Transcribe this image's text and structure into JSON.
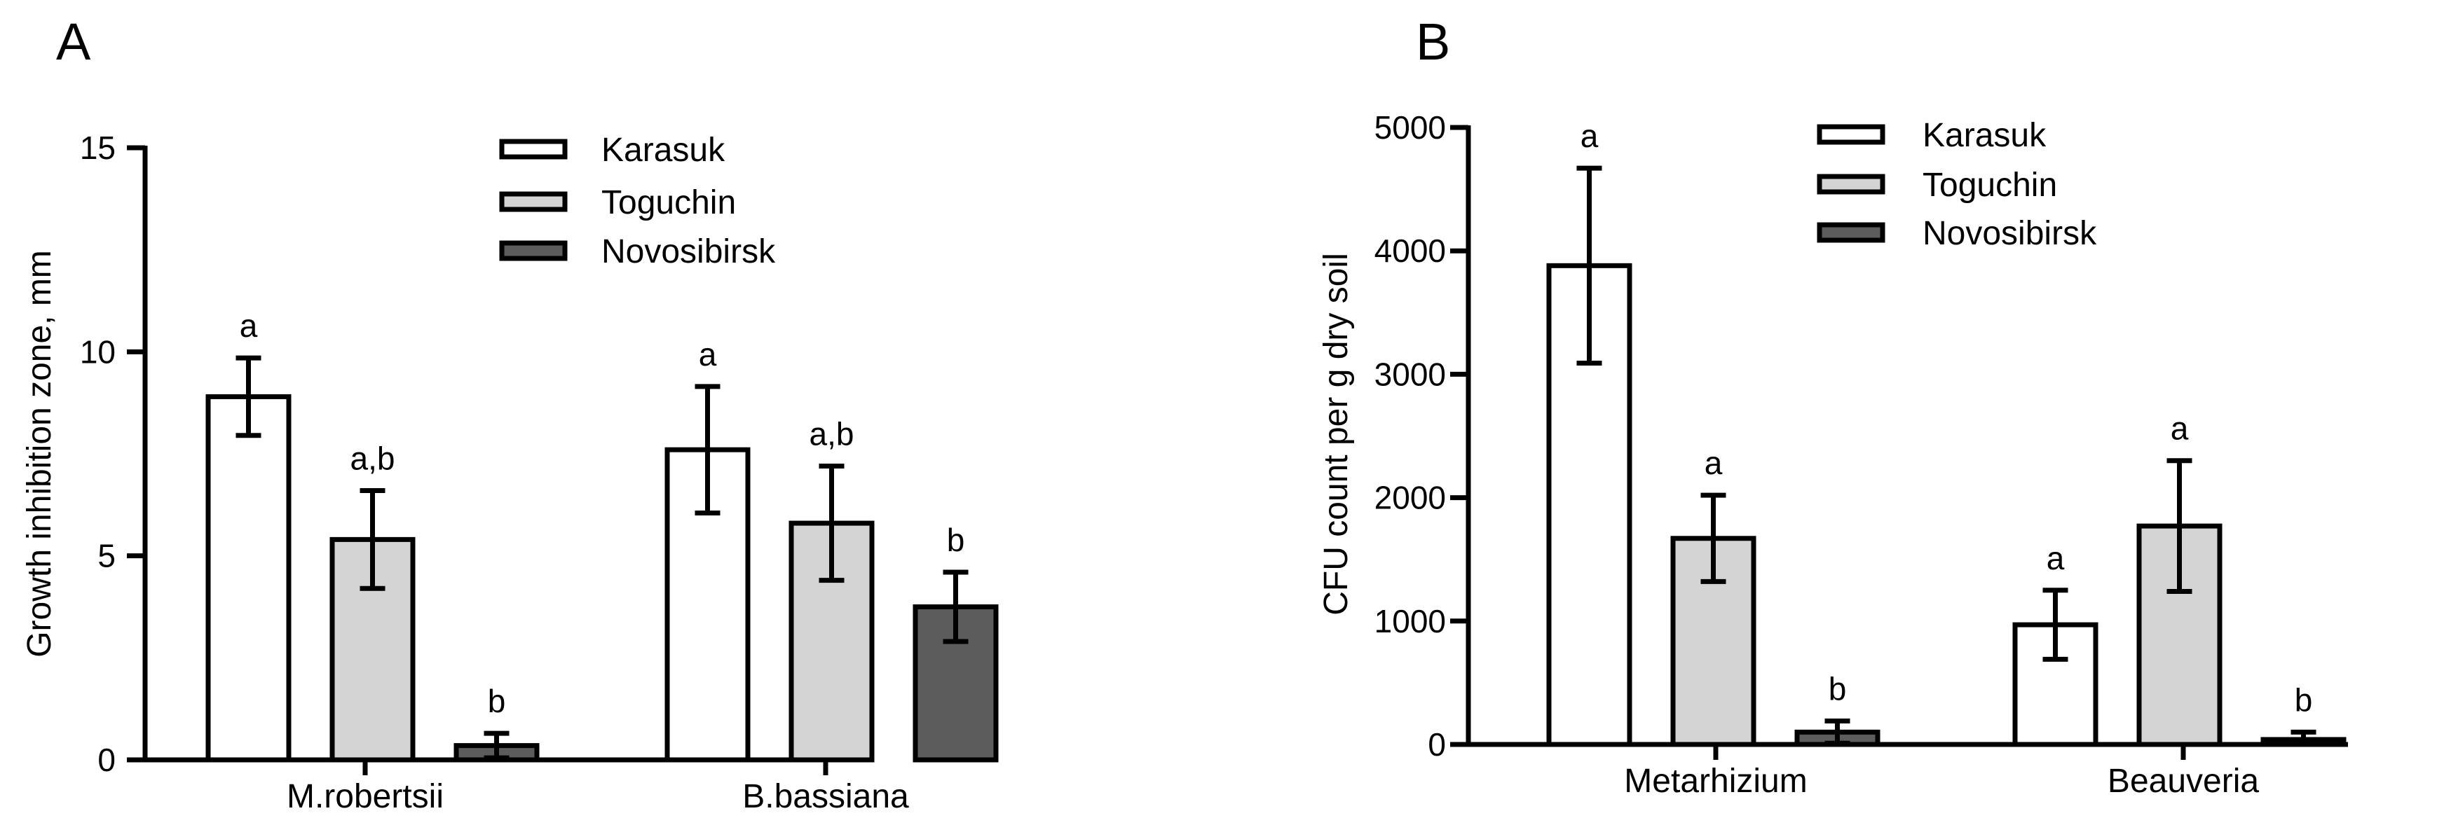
{
  "chart_data": [
    {
      "panel": "A",
      "type": "bar",
      "ylabel": "Growth inhibition zone, mm",
      "xlabel": "",
      "ylim": [
        0,
        15
      ],
      "yticks": [
        0,
        5,
        10,
        15
      ],
      "categories": [
        "M.robertsii",
        "B.bassiana"
      ],
      "series": [
        {
          "name": "Karasuk",
          "color": "#ffffff",
          "values": [
            8.9,
            7.6
          ],
          "errors": [
            0.95,
            1.55
          ],
          "letters": [
            "a",
            "a"
          ]
        },
        {
          "name": "Toguchin",
          "color": "#d4d4d4",
          "values": [
            5.4,
            5.8
          ],
          "errors": [
            1.2,
            1.4
          ],
          "letters": [
            "a,b",
            "a,b"
          ]
        },
        {
          "name": "Novosibirsk",
          "color": "#5c5c5c",
          "values": [
            0.35,
            3.75
          ],
          "errors": [
            0.3,
            0.85
          ],
          "letters": [
            "b",
            "b"
          ]
        }
      ],
      "legend": "top-center"
    },
    {
      "panel": "B",
      "type": "bar",
      "ylabel": "CFU count per g dry soil",
      "xlabel": "",
      "ylim": [
        0,
        5000
      ],
      "yticks": [
        0,
        1000,
        2000,
        3000,
        4000,
        5000
      ],
      "categories": [
        "Metarhizium",
        "Beauveria"
      ],
      "series": [
        {
          "name": "Karasuk",
          "color": "#ffffff",
          "values": [
            3880,
            970
          ],
          "errors": [
            790,
            280
          ],
          "letters": [
            "a",
            "a"
          ]
        },
        {
          "name": "Toguchin",
          "color": "#d4d4d4",
          "values": [
            1670,
            1770
          ],
          "errors": [
            350,
            530
          ],
          "letters": [
            "a",
            "a"
          ]
        },
        {
          "name": "Novosibirsk",
          "color": "#5c5c5c",
          "values": [
            100,
            40
          ],
          "errors": [
            90,
            60
          ],
          "letters": [
            "b",
            "b"
          ]
        }
      ],
      "legend": "top-center"
    }
  ]
}
